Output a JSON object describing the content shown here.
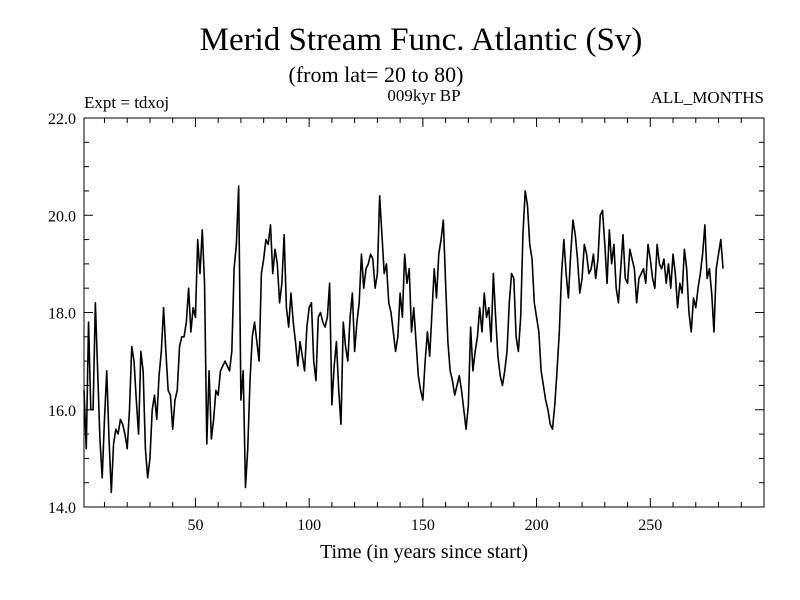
{
  "chart_data": {
    "type": "line",
    "title": "Merid Stream Func. Atlantic (Sv)",
    "subtitle": "(from lat= 20 to 80)",
    "annotations": {
      "left": "Expt = tdxoj",
      "center": "009kyr BP",
      "right": "ALL_MONTHS"
    },
    "xlabel": "Time (in years since start)",
    "ylabel": "",
    "xlim": [
      1,
      300
    ],
    "ylim": [
      14,
      22
    ],
    "x_ticks": [
      50,
      100,
      150,
      200,
      250
    ],
    "y_ticks": [
      14,
      16,
      18,
      20,
      22
    ],
    "y_tick_labels": [
      "14.0",
      "16.0",
      "18.0",
      "20.0",
      "22.0"
    ],
    "grid": false,
    "colors": {
      "line": "#000000",
      "axes": "#000000",
      "background": "#ffffff"
    },
    "series": [
      {
        "name": "Merid Stream Func. Atlantic",
        "x_start": 1,
        "x_step": 1,
        "values": [
          16.4,
          15.2,
          17.8,
          16.0,
          16.0,
          18.2,
          16.8,
          15.4,
          14.6,
          15.8,
          16.8,
          15.4,
          14.3,
          15.3,
          15.6,
          15.5,
          15.8,
          15.7,
          15.5,
          15.2,
          16.0,
          17.3,
          17.0,
          16.2,
          15.5,
          17.2,
          16.8,
          15.2,
          14.6,
          15.0,
          16.0,
          16.3,
          15.8,
          16.7,
          17.2,
          18.1,
          17.2,
          16.4,
          16.3,
          15.6,
          16.2,
          16.4,
          17.3,
          17.5,
          17.5,
          17.8,
          18.5,
          17.6,
          18.1,
          17.9,
          19.5,
          18.8,
          19.7,
          18.6,
          15.3,
          16.8,
          15.4,
          15.8,
          16.4,
          16.3,
          16.8,
          16.9,
          17.0,
          16.9,
          16.8,
          17.2,
          18.9,
          19.4,
          20.6,
          16.2,
          16.8,
          14.4,
          15.2,
          16.6,
          17.5,
          17.8,
          17.4,
          17.0,
          18.8,
          19.1,
          19.5,
          19.4,
          19.8,
          18.8,
          19.3,
          19.0,
          18.2,
          18.6,
          19.6,
          18.1,
          17.7,
          18.4,
          17.8,
          17.4,
          16.9,
          17.4,
          17.1,
          16.8,
          17.7,
          18.1,
          18.2,
          17.0,
          16.6,
          17.9,
          18.0,
          17.8,
          17.7,
          17.9,
          18.6,
          16.1,
          16.9,
          17.4,
          16.4,
          15.7,
          17.8,
          17.3,
          17.0,
          17.9,
          18.4,
          17.2,
          17.8,
          18.2,
          19.2,
          18.5,
          18.9,
          19.0,
          19.2,
          19.1,
          18.5,
          18.8,
          20.4,
          19.6,
          18.8,
          19.0,
          18.2,
          18.0,
          17.6,
          17.2,
          17.5,
          18.4,
          17.9,
          19.2,
          18.6,
          18.9,
          17.6,
          18.1,
          17.4,
          16.7,
          16.4,
          16.2,
          17.0,
          17.6,
          17.1,
          18.0,
          18.9,
          18.3,
          19.2,
          19.5,
          19.9,
          18.6,
          17.4,
          16.8,
          16.6,
          16.3,
          16.5,
          16.7,
          16.4,
          16.0,
          15.6,
          16.1,
          17.7,
          16.8,
          17.2,
          17.5,
          18.1,
          17.6,
          18.4,
          17.9,
          18.1,
          17.4,
          18.8,
          17.9,
          17.1,
          16.7,
          16.5,
          16.8,
          17.2,
          18.2,
          18.8,
          18.7,
          17.5,
          17.2,
          17.9,
          19.6,
          20.5,
          20.2,
          19.4,
          19.1,
          18.2,
          17.9,
          17.6,
          16.8,
          16.5,
          16.2,
          16.0,
          15.7,
          15.6,
          16.1,
          16.8,
          17.6,
          18.8,
          19.5,
          18.8,
          18.3,
          19.2,
          19.9,
          19.6,
          19.1,
          18.4,
          18.7,
          19.4,
          19.2,
          18.8,
          18.9,
          19.2,
          18.7,
          19.1,
          20.0,
          20.1,
          19.4,
          18.6,
          19.7,
          19.0,
          19.4,
          18.5,
          18.2,
          18.9,
          19.6,
          18.7,
          18.6,
          19.3,
          19.1,
          18.9,
          18.2,
          18.7,
          18.8,
          18.9,
          18.6,
          19.4,
          19.1,
          18.7,
          18.5,
          19.4,
          19.0,
          18.9,
          19.1,
          18.6,
          19.0,
          18.5,
          19.2,
          18.8,
          18.1,
          18.6,
          18.4,
          19.3,
          18.9,
          18.0,
          17.6,
          18.3,
          18.1,
          18.5,
          18.8,
          19.2,
          19.8,
          18.7,
          18.9,
          18.4,
          17.6,
          18.9,
          19.2,
          19.5,
          18.9
        ]
      }
    ]
  }
}
